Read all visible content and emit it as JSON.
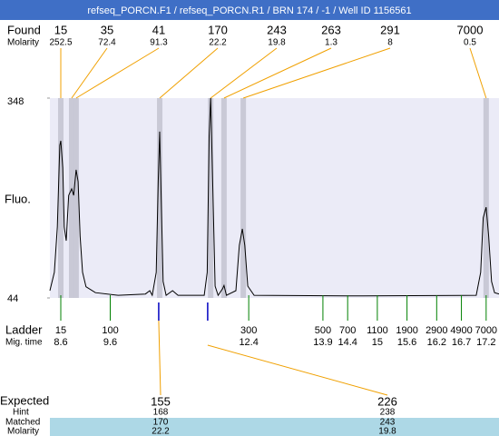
{
  "chart_data": {
    "type": "line",
    "title": "refseq_PORCN.F1 / refseq_PORCN.R1 / BRN 174 / -1 / Well ID 1156561",
    "y_label": "Fluo.",
    "ylim": [
      44,
      348
    ],
    "yticks": [
      348,
      44
    ],
    "xlim": [
      8.38,
      17.46
    ],
    "plot_color": "#ebebf7",
    "band_color": "#c9c9d6",
    "link_color": "#f0a000",
    "ladder_color": "#008000",
    "match_color": "#0000c0",
    "row_color": "#add8e6",
    "trace": {
      "color": "#000000",
      "time": [
        8.38,
        8.47,
        8.53,
        8.58,
        8.6,
        8.64,
        8.67,
        8.71,
        8.76,
        8.82,
        8.86,
        8.91,
        8.95,
        8.99,
        9.04,
        9.11,
        9.3,
        9.76,
        10.31,
        10.4,
        10.45,
        10.53,
        10.57,
        10.6,
        10.63,
        10.67,
        10.73,
        10.86,
        10.97,
        11.5,
        11.56,
        11.6,
        11.63,
        11.67,
        11.72,
        11.78,
        11.87,
        11.9,
        11.95,
        12.14,
        12.21,
        12.27,
        12.32,
        12.38,
        12.51,
        14.71,
        17.0,
        17.09,
        17.14,
        17.2,
        17.25,
        17.31,
        17.37,
        17.46
      ],
      "fluo": [
        55,
        83,
        152,
        276,
        283,
        242,
        152,
        131,
        200,
        210,
        200,
        239,
        221,
        138,
        83,
        61,
        52,
        48,
        50,
        55,
        48,
        83,
        221,
        297,
        193,
        69,
        48,
        55,
        48,
        48,
        83,
        290,
        348,
        221,
        62,
        48,
        58,
        63,
        48,
        55,
        124,
        149,
        124,
        62,
        48,
        47,
        48,
        83,
        166,
        182,
        138,
        69,
        52,
        50
      ]
    },
    "found": {
      "label": "Found",
      "molarity_label": "Molarity",
      "sizes": [
        15,
        35,
        41,
        170,
        243,
        263,
        291,
        7000
      ],
      "molarity": [
        252.5,
        72.4,
        91.3,
        22.2,
        19.8,
        1.3,
        8,
        0.5
      ],
      "times": [
        8.6,
        8.82,
        8.91,
        10.6,
        11.63,
        11.9,
        12.29,
        17.2
      ]
    },
    "ladder": {
      "label": "Ladder",
      "time_label": "Mig. time",
      "sizes": [
        15,
        100,
        300,
        500,
        700,
        1100,
        1900,
        2900,
        4900,
        7000
      ],
      "times": [
        8.6,
        9.6,
        12.4,
        13.9,
        14.4,
        15,
        15.6,
        16.2,
        16.7,
        17.2
      ]
    },
    "expected": {
      "label": "Expected",
      "hint_label": "Hint",
      "matched_label": "Matched",
      "molarity_label": "Molarity",
      "values": [
        155,
        226
      ],
      "hint": [
        168,
        238
      ],
      "matched": [
        170,
        243
      ],
      "molarity": [
        22.2,
        19.8
      ],
      "times": [
        10.58,
        11.57
      ]
    }
  }
}
